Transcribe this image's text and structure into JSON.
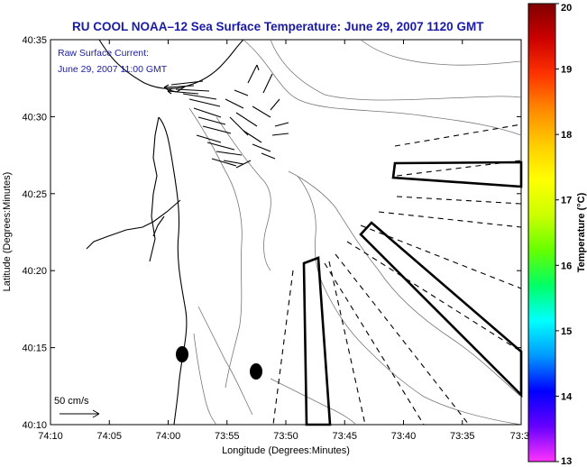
{
  "title": "RU COOL   NOAA–12  Sea Surface Temperature:  June 29, 2007 1120 GMT",
  "inset_title": "Raw Surface Current:",
  "inset_time": "June 29, 2007 11:00 GMT",
  "scale_label": "50 cm/s",
  "xlabel": "Longitude (Degrees:Minutes)",
  "ylabel": "Latitude (Degrees:Minutes)",
  "x_ticks": [
    "74:10",
    "74:05",
    "74:00",
    "73:55",
    "73:50",
    "73:45",
    "73:40",
    "73:35",
    "73:3"
  ],
  "y_ticks": [
    "40:35",
    "40:30",
    "40:25",
    "40:20",
    "40:15",
    "40:10"
  ],
  "colorbar": {
    "label": "Temperature (°C)",
    "ticks": [
      "20",
      "19",
      "18",
      "17",
      "16",
      "15",
      "14",
      "13"
    ],
    "min": 13,
    "max": 20,
    "colors": [
      "#ff33ff",
      "#6600ff",
      "#0000ff",
      "#0099ff",
      "#00ffff",
      "#00ff66",
      "#66ff00",
      "#ccff00",
      "#ffff00",
      "#ffcc00",
      "#ff8800",
      "#ff3300",
      "#cc0000",
      "#800000"
    ]
  },
  "chart_data": {
    "type": "map",
    "x_range": [
      "74:10",
      "73:30"
    ],
    "y_range": [
      "40:10",
      "40:35"
    ],
    "grid": false,
    "markers": [
      {
        "name": "dot",
        "lon": "74:01",
        "lat": "40:14.6"
      },
      {
        "name": "dot",
        "lon": "73:57.5",
        "lat": "40:13.5"
      }
    ]
  }
}
